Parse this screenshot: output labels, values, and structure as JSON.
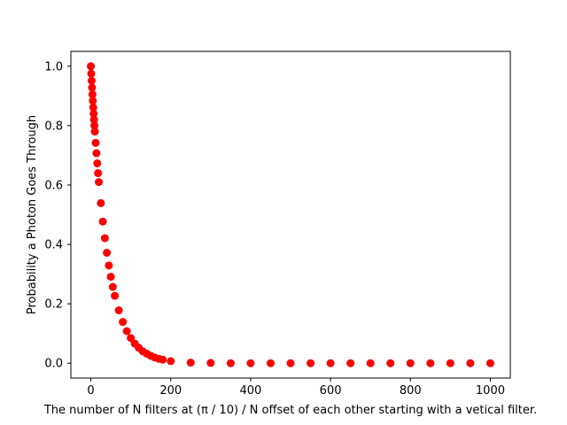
{
  "chart_data": {
    "type": "scatter",
    "title": "",
    "xlabel": "The number of N filters at (π / 10) / N offset of each other starting with a vetical filter.",
    "ylabel": "Probability a Photon Goes Through",
    "xlim": [
      -50,
      1050
    ],
    "ylim": [
      -0.05,
      1.05
    ],
    "xticks": [
      0,
      200,
      400,
      600,
      800,
      1000
    ],
    "xtick_labels": [
      "0",
      "200",
      "400",
      "600",
      "800",
      "1000"
    ],
    "yticks": [
      0.0,
      0.2,
      0.4,
      0.6,
      0.8,
      1.0
    ],
    "ytick_labels": [
      "0.0",
      "0.2",
      "0.4",
      "0.6",
      "0.8",
      "1.0"
    ],
    "grid": false,
    "marker_color": "#ff0000",
    "series": [
      {
        "x": [
          0,
          1,
          2,
          3,
          4,
          5,
          6,
          7,
          8,
          9,
          10,
          12,
          14,
          16,
          18,
          20,
          25,
          30,
          35,
          40,
          45,
          50,
          55,
          60,
          70,
          80,
          90,
          100,
          110,
          120,
          130,
          140,
          150,
          160,
          170,
          180,
          200,
          250,
          300,
          350,
          400,
          450,
          500,
          550,
          600,
          650,
          700,
          750,
          800,
          850,
          900,
          950,
          1000
        ],
        "y": [
          1.0,
          0.975,
          0.951,
          0.928,
          0.905,
          0.883,
          0.861,
          0.84,
          0.82,
          0.8,
          0.78,
          0.742,
          0.707,
          0.673,
          0.64,
          0.61,
          0.539,
          0.477,
          0.421,
          0.372,
          0.329,
          0.291,
          0.257,
          0.227,
          0.178,
          0.139,
          0.108,
          0.085,
          0.066,
          0.052,
          0.04,
          0.032,
          0.025,
          0.019,
          0.015,
          0.012,
          0.007,
          0.002,
          0.001,
          0.0,
          0.0,
          0.0,
          0.0,
          0.0,
          0.0,
          0.0,
          0.0,
          0.0,
          0.0,
          0.0,
          0.0,
          0.0,
          0.0
        ]
      }
    ]
  }
}
